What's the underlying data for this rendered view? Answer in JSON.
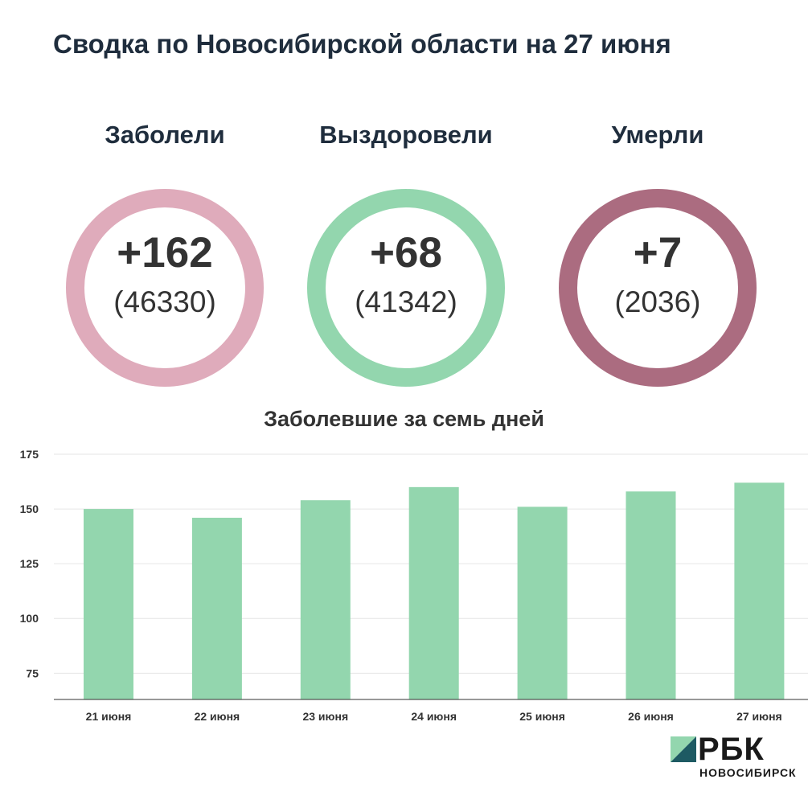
{
  "title": "Сводка по Новосибирской области на 27 июня",
  "stats": [
    {
      "label": "Заболели",
      "delta": "+162",
      "total": "(46330)",
      "color": "#dfabbb"
    },
    {
      "label": "Выздоровели",
      "delta": "+68",
      "total": "(41342)",
      "color": "#93d6ae"
    },
    {
      "label": "Умерли",
      "delta": "+7",
      "total": "(2036)",
      "color": "#ab6c80"
    }
  ],
  "chart_data": {
    "type": "bar",
    "title": "Заболевшие за семь дней",
    "categories": [
      "21 июня",
      "22 июня",
      "23 июня",
      "24 июня",
      "25 июня",
      "26 июня",
      "27 июня"
    ],
    "values": [
      150,
      146,
      154,
      160,
      151,
      158,
      162
    ],
    "ylim": [
      63,
      175
    ],
    "yticks": [
      75,
      100,
      125,
      150,
      175
    ],
    "grid": true,
    "bar_color": "#93d6ae",
    "xlabel": "",
    "ylabel": ""
  },
  "logo": {
    "brand": "РБК",
    "city": "НОВОСИБИРСК",
    "color_light": "#93d6ae",
    "color_dark": "#1e5a63"
  }
}
